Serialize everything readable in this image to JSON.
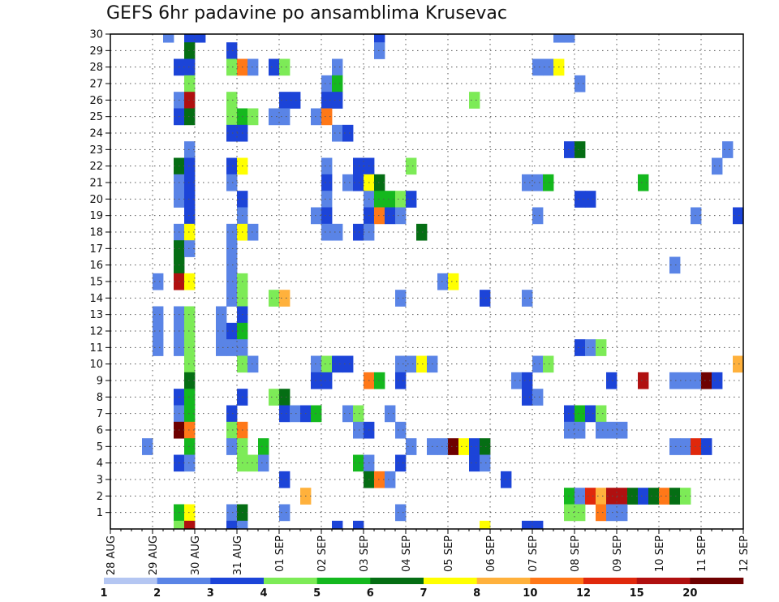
{
  "chart_data": {
    "type": "heatmap",
    "title": "GEFS 6hr padavine po ansamblima Krusevac",
    "xlabel": "",
    "ylabel": "",
    "x_ticks": [
      "28 AUG",
      "29 AUG",
      "30 AUG",
      "31 AUG",
      "01 SEP",
      "02 SEP",
      "03 SEP",
      "04 SEP",
      "05 SEP",
      "06 SEP",
      "07 SEP",
      "08 SEP",
      "09 SEP",
      "10 SEP",
      "11 SEP",
      "12 SEP"
    ],
    "y_ticks": [
      1,
      2,
      3,
      4,
      5,
      6,
      7,
      8,
      9,
      10,
      11,
      12,
      13,
      14,
      15,
      16,
      17,
      18,
      19,
      20,
      21,
      22,
      23,
      24,
      25,
      26,
      27,
      28,
      29,
      30
    ],
    "y_range": [
      0,
      30
    ],
    "time_steps_per_day": 4,
    "grid": true,
    "legend_placement": "bottom",
    "colorbar_labels": [
      "1",
      "2",
      "3",
      "4",
      "5",
      "6",
      "7",
      "8",
      "10",
      "12",
      "15",
      "20"
    ],
    "colorbar_colors": [
      "#b4c6f2",
      "#5a84e6",
      "#1c44d8",
      "#7deb57",
      "#14b81e",
      "#056e14",
      "#ffff00",
      "#ffb13c",
      "#ff7818",
      "#e0280c",
      "#b01010",
      "#6e0000"
    ],
    "cell_value_index_note": "",
    "cells": [
      [
        30,
        5,
        1
      ],
      [
        30,
        7,
        2
      ],
      [
        30,
        8,
        2
      ],
      [
        30,
        25,
        2
      ],
      [
        30,
        42,
        1
      ],
      [
        30,
        43,
        1
      ],
      [
        29,
        7,
        5
      ],
      [
        29,
        11,
        2
      ],
      [
        29,
        25,
        1
      ],
      [
        28,
        6,
        2
      ],
      [
        28,
        7,
        2
      ],
      [
        28,
        11,
        3
      ],
      [
        28,
        12,
        8
      ],
      [
        28,
        13,
        1
      ],
      [
        28,
        15,
        2
      ],
      [
        28,
        16,
        3
      ],
      [
        28,
        21,
        1
      ],
      [
        28,
        40,
        1
      ],
      [
        28,
        41,
        1
      ],
      [
        28,
        42,
        6
      ],
      [
        27,
        7,
        3
      ],
      [
        27,
        20,
        1
      ],
      [
        27,
        21,
        4
      ],
      [
        27,
        44,
        1
      ],
      [
        26,
        6,
        1
      ],
      [
        26,
        7,
        10
      ],
      [
        26,
        11,
        3
      ],
      [
        26,
        16,
        2
      ],
      [
        26,
        17,
        2
      ],
      [
        26,
        20,
        2
      ],
      [
        26,
        21,
        2
      ],
      [
        26,
        34,
        3
      ],
      [
        25,
        6,
        2
      ],
      [
        25,
        7,
        5
      ],
      [
        25,
        11,
        3
      ],
      [
        25,
        12,
        4
      ],
      [
        25,
        13,
        3
      ],
      [
        25,
        15,
        1
      ],
      [
        25,
        16,
        1
      ],
      [
        25,
        19,
        1
      ],
      [
        25,
        20,
        8
      ],
      [
        24,
        11,
        2
      ],
      [
        24,
        12,
        2
      ],
      [
        24,
        21,
        1
      ],
      [
        24,
        22,
        2
      ],
      [
        23,
        7,
        1
      ],
      [
        23,
        43,
        2
      ],
      [
        23,
        44,
        5
      ],
      [
        23,
        58,
        1
      ],
      [
        22,
        6,
        5
      ],
      [
        22,
        7,
        2
      ],
      [
        22,
        11,
        2
      ],
      [
        22,
        12,
        6
      ],
      [
        22,
        20,
        1
      ],
      [
        22,
        23,
        2
      ],
      [
        22,
        24,
        2
      ],
      [
        22,
        28,
        3
      ],
      [
        22,
        57,
        1
      ],
      [
        21,
        6,
        1
      ],
      [
        21,
        7,
        2
      ],
      [
        21,
        11,
        1
      ],
      [
        21,
        20,
        2
      ],
      [
        21,
        22,
        1
      ],
      [
        21,
        23,
        2
      ],
      [
        21,
        24,
        6
      ],
      [
        21,
        25,
        5
      ],
      [
        21,
        39,
        1
      ],
      [
        21,
        40,
        1
      ],
      [
        21,
        41,
        4
      ],
      [
        21,
        50,
        4
      ],
      [
        21,
        60,
        3
      ],
      [
        20,
        6,
        1
      ],
      [
        20,
        7,
        2
      ],
      [
        20,
        12,
        2
      ],
      [
        20,
        20,
        1
      ],
      [
        20,
        24,
        1
      ],
      [
        20,
        25,
        4
      ],
      [
        20,
        26,
        4
      ],
      [
        20,
        27,
        3
      ],
      [
        20,
        28,
        2
      ],
      [
        20,
        44,
        2
      ],
      [
        20,
        45,
        2
      ],
      [
        19,
        7,
        2
      ],
      [
        19,
        12,
        1
      ],
      [
        19,
        19,
        1
      ],
      [
        19,
        20,
        2
      ],
      [
        19,
        24,
        2
      ],
      [
        19,
        25,
        8
      ],
      [
        19,
        26,
        2
      ],
      [
        19,
        27,
        1
      ],
      [
        19,
        40,
        1
      ],
      [
        19,
        55,
        1
      ],
      [
        19,
        59,
        2
      ],
      [
        19,
        60,
        3
      ],
      [
        18,
        6,
        1
      ],
      [
        18,
        7,
        6
      ],
      [
        18,
        11,
        1
      ],
      [
        18,
        12,
        6
      ],
      [
        18,
        13,
        1
      ],
      [
        18,
        20,
        1
      ],
      [
        18,
        21,
        1
      ],
      [
        18,
        23,
        2
      ],
      [
        18,
        24,
        1
      ],
      [
        18,
        29,
        5
      ],
      [
        17,
        6,
        5
      ],
      [
        17,
        7,
        1
      ],
      [
        17,
        11,
        1
      ],
      [
        16,
        6,
        5
      ],
      [
        16,
        11,
        1
      ],
      [
        16,
        53,
        1
      ],
      [
        15,
        4,
        1
      ],
      [
        15,
        6,
        10
      ],
      [
        15,
        7,
        6
      ],
      [
        15,
        11,
        1
      ],
      [
        15,
        12,
        3
      ],
      [
        15,
        31,
        1
      ],
      [
        15,
        32,
        6
      ],
      [
        14,
        11,
        1
      ],
      [
        14,
        12,
        3
      ],
      [
        14,
        15,
        3
      ],
      [
        14,
        16,
        7
      ],
      [
        14,
        27,
        1
      ],
      [
        14,
        35,
        2
      ],
      [
        14,
        39,
        1
      ],
      [
        14,
        60,
        1
      ],
      [
        13,
        4,
        1
      ],
      [
        13,
        6,
        1
      ],
      [
        13,
        7,
        3
      ],
      [
        13,
        10,
        1
      ],
      [
        13,
        12,
        2
      ],
      [
        12,
        4,
        1
      ],
      [
        12,
        6,
        1
      ],
      [
        12,
        7,
        3
      ],
      [
        12,
        10,
        1
      ],
      [
        12,
        11,
        2
      ],
      [
        12,
        12,
        4
      ],
      [
        11,
        4,
        1
      ],
      [
        11,
        6,
        1
      ],
      [
        11,
        7,
        3
      ],
      [
        11,
        10,
        1
      ],
      [
        11,
        11,
        1
      ],
      [
        11,
        12,
        1
      ],
      [
        11,
        44,
        2
      ],
      [
        11,
        45,
        1
      ],
      [
        11,
        46,
        3
      ],
      [
        10,
        7,
        3
      ],
      [
        10,
        12,
        3
      ],
      [
        10,
        13,
        1
      ],
      [
        10,
        19,
        1
      ],
      [
        10,
        20,
        3
      ],
      [
        10,
        21,
        2
      ],
      [
        10,
        22,
        2
      ],
      [
        10,
        27,
        1
      ],
      [
        10,
        28,
        1
      ],
      [
        10,
        29,
        6
      ],
      [
        10,
        30,
        1
      ],
      [
        10,
        40,
        1
      ],
      [
        10,
        41,
        3
      ],
      [
        10,
        59,
        7
      ],
      [
        9,
        7,
        5
      ],
      [
        9,
        19,
        2
      ],
      [
        9,
        20,
        2
      ],
      [
        9,
        24,
        8
      ],
      [
        9,
        25,
        4
      ],
      [
        9,
        27,
        2
      ],
      [
        9,
        38,
        1
      ],
      [
        9,
        39,
        2
      ],
      [
        9,
        47,
        2
      ],
      [
        9,
        50,
        10
      ],
      [
        9,
        53,
        1
      ],
      [
        9,
        54,
        1
      ],
      [
        9,
        55,
        1
      ],
      [
        9,
        56,
        11
      ],
      [
        9,
        57,
        2
      ],
      [
        8,
        6,
        2
      ],
      [
        8,
        7,
        4
      ],
      [
        8,
        12,
        2
      ],
      [
        8,
        15,
        3
      ],
      [
        8,
        16,
        5
      ],
      [
        8,
        39,
        2
      ],
      [
        8,
        40,
        1
      ],
      [
        7,
        6,
        1
      ],
      [
        7,
        7,
        4
      ],
      [
        7,
        11,
        2
      ],
      [
        7,
        16,
        2
      ],
      [
        7,
        17,
        1
      ],
      [
        7,
        18,
        2
      ],
      [
        7,
        19,
        4
      ],
      [
        7,
        22,
        1
      ],
      [
        7,
        23,
        3
      ],
      [
        7,
        26,
        1
      ],
      [
        7,
        43,
        2
      ],
      [
        7,
        44,
        4
      ],
      [
        7,
        45,
        2
      ],
      [
        7,
        46,
        3
      ],
      [
        6,
        6,
        11
      ],
      [
        6,
        7,
        8
      ],
      [
        6,
        11,
        3
      ],
      [
        6,
        12,
        8
      ],
      [
        6,
        23,
        1
      ],
      [
        6,
        24,
        2
      ],
      [
        6,
        27,
        1
      ],
      [
        6,
        43,
        1
      ],
      [
        6,
        44,
        1
      ],
      [
        6,
        46,
        1
      ],
      [
        6,
        47,
        1
      ],
      [
        6,
        48,
        1
      ],
      [
        5,
        3,
        1
      ],
      [
        5,
        7,
        4
      ],
      [
        5,
        11,
        1
      ],
      [
        5,
        12,
        3
      ],
      [
        5,
        14,
        4
      ],
      [
        5,
        28,
        1
      ],
      [
        5,
        30,
        1
      ],
      [
        5,
        31,
        1
      ],
      [
        5,
        32,
        11
      ],
      [
        5,
        33,
        6
      ],
      [
        5,
        34,
        2
      ],
      [
        5,
        35,
        5
      ],
      [
        5,
        53,
        1
      ],
      [
        5,
        54,
        1
      ],
      [
        5,
        55,
        9
      ],
      [
        5,
        56,
        2
      ],
      [
        4,
        6,
        2
      ],
      [
        4,
        7,
        1
      ],
      [
        4,
        12,
        3
      ],
      [
        4,
        13,
        3
      ],
      [
        4,
        14,
        1
      ],
      [
        4,
        23,
        4
      ],
      [
        4,
        24,
        1
      ],
      [
        4,
        27,
        2
      ],
      [
        4,
        34,
        2
      ],
      [
        4,
        35,
        1
      ],
      [
        3,
        16,
        2
      ],
      [
        3,
        24,
        5
      ],
      [
        3,
        25,
        8
      ],
      [
        3,
        26,
        1
      ],
      [
        3,
        37,
        2
      ],
      [
        2,
        18,
        7
      ],
      [
        2,
        43,
        4
      ],
      [
        2,
        44,
        1
      ],
      [
        2,
        45,
        9
      ],
      [
        2,
        46,
        7
      ],
      [
        2,
        47,
        10
      ],
      [
        2,
        48,
        10
      ],
      [
        2,
        49,
        5
      ],
      [
        2,
        50,
        2
      ],
      [
        2,
        51,
        5
      ],
      [
        2,
        52,
        8
      ],
      [
        2,
        53,
        5
      ],
      [
        2,
        54,
        3
      ],
      [
        1,
        6,
        4
      ],
      [
        1,
        7,
        6
      ],
      [
        1,
        11,
        1
      ],
      [
        1,
        12,
        5
      ],
      [
        1,
        16,
        1
      ],
      [
        1,
        27,
        1
      ],
      [
        1,
        43,
        3
      ],
      [
        1,
        44,
        3
      ],
      [
        1,
        46,
        8
      ],
      [
        1,
        47,
        1
      ],
      [
        1,
        48,
        1
      ],
      [
        0,
        6,
        3
      ],
      [
        0,
        7,
        10
      ],
      [
        0,
        11,
        2
      ],
      [
        0,
        12,
        1
      ],
      [
        0,
        21,
        2
      ],
      [
        0,
        23,
        2
      ],
      [
        0,
        35,
        6
      ],
      [
        0,
        39,
        2
      ],
      [
        0,
        40,
        2
      ],
      [
        -1,
        7,
        1
      ],
      [
        -1,
        11,
        6
      ],
      [
        -1,
        12,
        10
      ],
      [
        -1,
        15,
        1
      ],
      [
        -1,
        16,
        2
      ],
      [
        -1,
        18,
        3
      ],
      [
        -1,
        20,
        1
      ],
      [
        -1,
        22,
        1
      ],
      [
        -1,
        23,
        7
      ],
      [
        -1,
        24,
        2
      ],
      [
        -1,
        35,
        1
      ]
    ]
  }
}
